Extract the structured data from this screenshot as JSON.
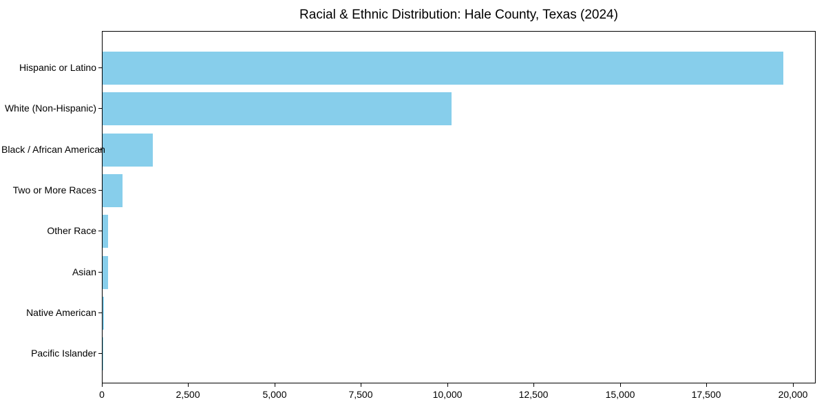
{
  "chart_data": {
    "type": "bar",
    "orientation": "horizontal",
    "title": "Racial & Ethnic Distribution: Hale County, Texas (2024)",
    "categories": [
      "Hispanic or Latino",
      "White (Non-Hispanic)",
      "Black / African American",
      "Two or More Races",
      "Other Race",
      "Asian",
      "Native American",
      "Pacific Islander"
    ],
    "values": [
      19700,
      10100,
      1450,
      570,
      150,
      160,
      30,
      10
    ],
    "bar_color": "#87CEEB",
    "axis_color": "#000000",
    "background_color": "#ffffff",
    "xlabel": "",
    "ylabel": "",
    "xlim": [
      0,
      20660
    ],
    "xticks": [
      {
        "value": 0,
        "label": "0"
      },
      {
        "value": 2500,
        "label": "2,500"
      },
      {
        "value": 5000,
        "label": "5,000"
      },
      {
        "value": 7500,
        "label": "7,500"
      },
      {
        "value": 10000,
        "label": "10,000"
      },
      {
        "value": 12500,
        "label": "12,500"
      },
      {
        "value": 15000,
        "label": "15,000"
      },
      {
        "value": 17500,
        "label": "17,500"
      },
      {
        "value": 20000,
        "label": "20,000"
      }
    ],
    "grid": false,
    "legend": "none"
  }
}
